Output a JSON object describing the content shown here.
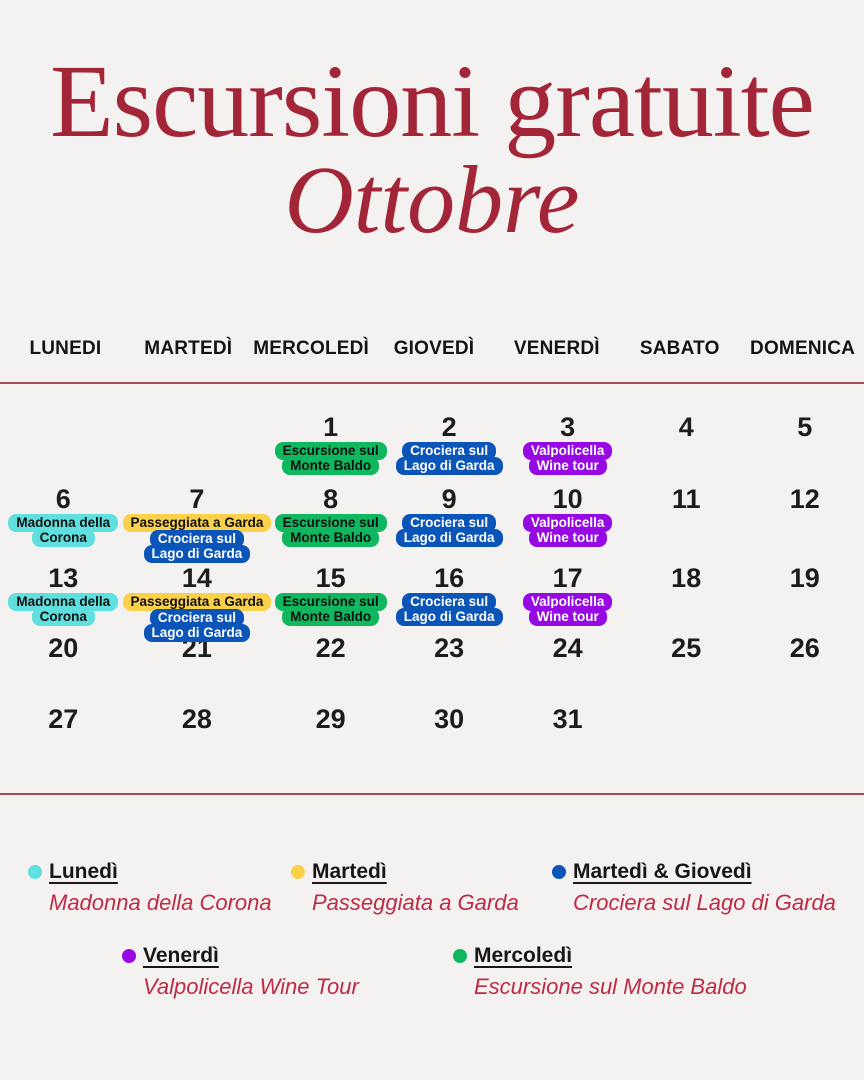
{
  "page": {
    "background": "#f4f1f1",
    "rule_color": "#a54b57"
  },
  "header": {
    "title": "Escursioni gratuite",
    "subtitle": "Ottobre",
    "title_color": "#a32638"
  },
  "calendar": {
    "weekday_headers": [
      "LUNEDI",
      "MARTEDÌ",
      "MERCOLEDÌ",
      "GIOVEDÌ",
      "VENERDÌ",
      "SABATO",
      "DOMENICA"
    ],
    "weeks": [
      [
        null,
        null,
        {
          "day": "1",
          "events": [
            "monte_baldo"
          ]
        },
        {
          "day": "2",
          "events": [
            "crociera"
          ]
        },
        {
          "day": "3",
          "events": [
            "valpolicella"
          ]
        },
        {
          "day": "4",
          "events": []
        },
        {
          "day": "5",
          "events": []
        }
      ],
      [
        {
          "day": "6",
          "events": [
            "corona"
          ]
        },
        {
          "day": "7",
          "events": [
            "passeggiata",
            "crociera"
          ]
        },
        {
          "day": "8",
          "events": [
            "monte_baldo"
          ]
        },
        {
          "day": "9",
          "events": [
            "crociera"
          ]
        },
        {
          "day": "10",
          "events": [
            "valpolicella"
          ]
        },
        {
          "day": "11",
          "events": []
        },
        {
          "day": "12",
          "events": []
        }
      ],
      [
        {
          "day": "13",
          "events": [
            "corona"
          ]
        },
        {
          "day": "14",
          "events": [
            "passeggiata",
            "crociera"
          ]
        },
        {
          "day": "15",
          "events": [
            "monte_baldo"
          ]
        },
        {
          "day": "16",
          "events": [
            "crociera"
          ]
        },
        {
          "day": "17",
          "events": [
            "valpolicella"
          ]
        },
        {
          "day": "18",
          "events": []
        },
        {
          "day": "19",
          "events": []
        }
      ],
      [
        {
          "day": "20",
          "events": []
        },
        {
          "day": "21",
          "events": []
        },
        {
          "day": "22",
          "events": []
        },
        {
          "day": "23",
          "events": []
        },
        {
          "day": "24",
          "events": []
        },
        {
          "day": "25",
          "events": []
        },
        {
          "day": "26",
          "events": []
        }
      ],
      [
        {
          "day": "27",
          "events": []
        },
        {
          "day": "28",
          "events": []
        },
        {
          "day": "29",
          "events": []
        },
        {
          "day": "30",
          "events": []
        },
        {
          "day": "31",
          "events": []
        },
        null,
        null
      ]
    ]
  },
  "events": {
    "monte_baldo": {
      "lines": [
        "Escursione sul",
        "Monte Baldo"
      ],
      "bg": "#0fb75f",
      "fg": "#101010"
    },
    "crociera": {
      "lines": [
        "Crociera sul",
        "Lago di Garda"
      ],
      "bg": "#0b55b8",
      "fg": "#ffffff"
    },
    "valpolicella": {
      "lines": [
        "Valpolicella",
        "Wine tour"
      ],
      "bg": "#9709e3",
      "fg": "#ffffff"
    },
    "corona": {
      "lines": [
        "Madonna della",
        "Corona"
      ],
      "bg": "#5fdfdd",
      "fg": "#101010"
    },
    "passeggiata": {
      "lines": [
        "Passeggiata a Garda"
      ],
      "bg": "#fbd14b",
      "fg": "#101010"
    }
  },
  "legend": {
    "description_color": "#be2b45",
    "rows": [
      {
        "items": [
          {
            "dot_color": "#5fdfdd",
            "label": "Lunedì",
            "description": "Madonna della Corona"
          },
          {
            "dot_color": "#fbd14b",
            "label": "Martedì",
            "description": "Passeggiata a Garda"
          },
          {
            "dot_color": "#0b55b8",
            "label": "Martedì & Giovedì",
            "description": "Crociera sul Lago di Garda"
          }
        ]
      },
      {
        "items": [
          {
            "dot_color": "#9709e3",
            "label": "Venerdì",
            "description": "Valpolicella Wine Tour"
          },
          {
            "dot_color": "#0fb75f",
            "label": "Mercoledì",
            "description": "Escursione sul Monte Baldo"
          }
        ]
      }
    ]
  }
}
